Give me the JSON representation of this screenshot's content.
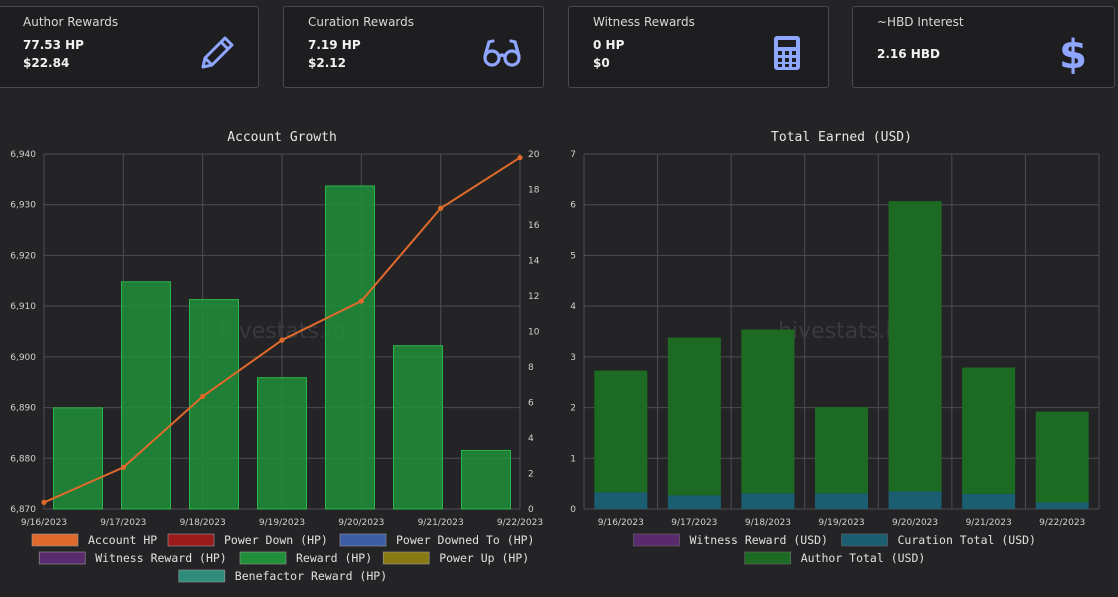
{
  "cards": [
    {
      "title": "Author Rewards",
      "line1": "77.53 HP",
      "line2": "$22.84",
      "icon": "pencil-icon"
    },
    {
      "title": "Curation Rewards",
      "line1": "7.19 HP",
      "line2": "$2.12",
      "icon": "glasses-icon"
    },
    {
      "title": "Witness Rewards",
      "line1": "0 HP",
      "line2": "$0",
      "icon": "calculator-icon"
    },
    {
      "title": "~HBD Interest",
      "line1": "2.16 HBD",
      "line2": "",
      "icon": "dollar-icon"
    }
  ],
  "icon_color": "#8fa6ff",
  "watermark": "hivestats.io",
  "chart_data": [
    {
      "type": "bar",
      "title": "Account Growth",
      "categories": [
        "9/16/2023",
        "9/17/2023",
        "9/18/2023",
        "9/19/2023",
        "9/20/2023",
        "9/21/2023",
        "9/22/2023"
      ],
      "left_axis": {
        "min": 6870,
        "max": 6940,
        "ticks": [
          "6,870",
          "6,880",
          "6,890",
          "6,900",
          "6,910",
          "6,920",
          "6,930",
          "6,940"
        ]
      },
      "right_axis": {
        "min": 0,
        "max": 20,
        "ticks": [
          "0",
          "2",
          "4",
          "6",
          "8",
          "10",
          "12",
          "14",
          "16",
          "18",
          "20"
        ]
      },
      "series": [
        {
          "name": "Account HP",
          "type": "line",
          "axis": "left",
          "color": "#e06a2c",
          "values": [
            6871.3,
            6878.2,
            6892.2,
            6903.3,
            6911.0,
            6929.3,
            6939.3
          ]
        },
        {
          "name": "Power Down (HP)",
          "type": "bar",
          "color": "#9b1b1b",
          "values": [
            0,
            0,
            0,
            0,
            0,
            0,
            0
          ]
        },
        {
          "name": "Power Downed To (HP)",
          "type": "bar",
          "color": "#3d5ea6",
          "values": [
            0,
            0,
            0,
            0,
            0,
            0,
            0
          ]
        },
        {
          "name": "Witness Reward (HP)",
          "type": "bar",
          "color": "#5a2a6e",
          "values": [
            0,
            0,
            0,
            0,
            0,
            0,
            0
          ]
        },
        {
          "name": "Reward (HP)",
          "type": "bar",
          "axis": "right",
          "color": "#1f8f3a",
          "values": [
            5.7,
            12.8,
            11.8,
            7.4,
            18.2,
            9.2,
            3.3
          ]
        },
        {
          "name": "Power Up (HP)",
          "type": "bar",
          "color": "#8a7a12",
          "values": [
            0,
            0,
            0,
            0,
            0,
            0,
            0
          ]
        },
        {
          "name": "Benefactor Reward (HP)",
          "type": "bar",
          "color": "#2e8d7a",
          "values": [
            0,
            0,
            0,
            0,
            0,
            0,
            0
          ]
        }
      ],
      "legend_position": "bottom",
      "grid": true
    },
    {
      "type": "bar",
      "stacked": true,
      "title": "Total Earned (USD)",
      "categories": [
        "9/16/2023",
        "9/17/2023",
        "9/18/2023",
        "9/19/2023",
        "9/20/2023",
        "9/21/2023",
        "9/22/2023"
      ],
      "y_axis": {
        "min": 0,
        "max": 7,
        "ticks": [
          "0",
          "1",
          "2",
          "3",
          "4",
          "5",
          "6",
          "7"
        ]
      },
      "series": [
        {
          "name": "Witness Reward (USD)",
          "color": "#5a2a6e",
          "values": [
            0,
            0,
            0,
            0,
            0,
            0,
            0
          ]
        },
        {
          "name": "Curation Total (USD)",
          "color": "#1b5e72",
          "values": [
            0.33,
            0.27,
            0.31,
            0.31,
            0.35,
            0.3,
            0.13
          ]
        },
        {
          "name": "Author Total (USD)",
          "color": "#1d6b23",
          "values": [
            2.4,
            3.11,
            3.23,
            1.7,
            5.72,
            2.49,
            1.79
          ]
        }
      ],
      "legend_position": "bottom",
      "grid": true
    }
  ]
}
